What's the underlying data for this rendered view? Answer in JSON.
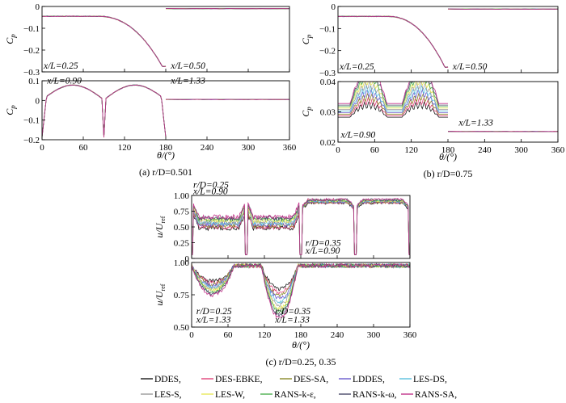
{
  "series_legend": [
    {
      "name": "DDES",
      "color": "#1a1a1a"
    },
    {
      "name": "DES-EBKE",
      "color": "#e0457a"
    },
    {
      "name": "DES-SA",
      "color": "#8a8a2a"
    },
    {
      "name": "LDDES",
      "color": "#6a5acd"
    },
    {
      "name": "LES-DS",
      "color": "#5bc0de"
    },
    {
      "name": "LES-S",
      "color": "#9a9a9a"
    },
    {
      "name": "LES-W",
      "color": "#e8e85a"
    },
    {
      "name": "RANS-k-ε",
      "color": "#4caf50"
    },
    {
      "name": "RANS-k-ω",
      "color": "#4a4a6a"
    },
    {
      "name": "RANS-SA",
      "color": "#c2338a"
    }
  ],
  "chart_data": [
    {
      "id": "a_top",
      "type": "line",
      "ylabel": "C_p",
      "ylim": [
        -0.3,
        0
      ],
      "yticks": [
        "0",
        "−0.1",
        "−0.2",
        "−0.3"
      ],
      "xlim": [
        0,
        360
      ],
      "show_xticks": false,
      "annotations": [
        {
          "text": "x/L=0.25",
          "x": 0,
          "y": -0.285
        },
        {
          "text": "x/L=0.50",
          "x": 185,
          "y": -0.285
        }
      ],
      "segments": [
        {
          "x0": 0,
          "x1": 180,
          "shape": "cp_drop"
        },
        {
          "x0": 180,
          "x1": 360,
          "shape": "flat",
          "base": -0.01
        }
      ]
    },
    {
      "id": "a_bot",
      "type": "line",
      "ylabel": "C_p",
      "ylim": [
        -0.2,
        0.1
      ],
      "yticks": [
        "0.1",
        "0",
        "−0.1",
        "−0.2"
      ],
      "xlim": [
        0,
        360
      ],
      "show_xticks": true,
      "xticks": [
        "0",
        "60",
        "120",
        "180",
        "240",
        "300",
        "360"
      ],
      "annotations": [
        {
          "text": "x/L=0.90",
          "x": 5,
          "y": 0.085
        },
        {
          "text": "x/L=1.33",
          "x": 185,
          "y": 0.085
        }
      ],
      "segments": [
        {
          "x0": 0,
          "x1": 180,
          "shape": "arches"
        },
        {
          "x0": 180,
          "x1": 360,
          "shape": "flat",
          "base": 0.005
        }
      ]
    },
    {
      "id": "b_top",
      "type": "line",
      "ylabel": "C_p",
      "ylim": [
        -0.3,
        0
      ],
      "yticks": [
        "0",
        "−0.1",
        "−0.2",
        "−0.3"
      ],
      "xlim": [
        0,
        360
      ],
      "show_xticks": false,
      "annotations": [
        {
          "text": "x/L=0.25",
          "x": 0,
          "y": -0.285
        },
        {
          "text": "x/L=0.50",
          "x": 185,
          "y": -0.285
        }
      ],
      "segments": [
        {
          "x0": 0,
          "x1": 180,
          "shape": "cp_drop"
        },
        {
          "x0": 180,
          "x1": 360,
          "shape": "flat",
          "base": -0.012
        }
      ]
    },
    {
      "id": "b_bot",
      "type": "line",
      "ylabel": "C_p",
      "ylim": [
        0.02,
        0.04
      ],
      "yticks": [
        "0.04",
        "0.03",
        "0.02"
      ],
      "xlim": [
        0,
        360
      ],
      "show_xticks": true,
      "xticks": [
        "0",
        "60",
        "120",
        "180",
        "240",
        "300",
        "360"
      ],
      "annotations": [
        {
          "text": "x/L=0.90",
          "x": 2,
          "y": 0.0215
        },
        {
          "text": "x/L=1.33",
          "x": 195,
          "y": 0.0255
        }
      ],
      "segments": [
        {
          "x0": 0,
          "x1": 180,
          "shape": "double_hump"
        },
        {
          "x0": 180,
          "x1": 360,
          "shape": "flat",
          "base": 0.0235
        }
      ]
    },
    {
      "id": "c_top",
      "type": "line",
      "ylabel": "u/U_ref",
      "ylim": [
        0,
        1
      ],
      "yticks": [
        "1.00",
        "0.75",
        "0.50",
        "0.25",
        "0"
      ],
      "xlim": [
        0,
        360
      ],
      "show_xticks": false,
      "annotations": [
        {
          "text": "r/D=0.25",
          "x": 0,
          "y": 1.12
        },
        {
          "text": "x/L=0.90",
          "x": 0,
          "y": 1.02
        },
        {
          "text": "r/D=0.35",
          "x": 185,
          "y": 0.2
        },
        {
          "text": "x/L=0.90",
          "x": 185,
          "y": 0.08
        }
      ],
      "segments": [
        {
          "x0": 0,
          "x1": 180,
          "shape": "u_hump"
        },
        {
          "x0": 180,
          "x1": 360,
          "shape": "u_high"
        }
      ]
    },
    {
      "id": "c_bot",
      "type": "line",
      "ylabel": "u/U_ref",
      "ylim": [
        0.5,
        1
      ],
      "yticks": [
        "1.00",
        "0.75",
        "0.50"
      ],
      "xlim": [
        0,
        360
      ],
      "show_xticks": true,
      "xticks": [
        "0",
        "60",
        "120",
        "180",
        "240",
        "300",
        "360"
      ],
      "annotations": [
        {
          "text": "r/D=0.25",
          "x": 5,
          "y": 0.6
        },
        {
          "text": "x/L=1.33",
          "x": 5,
          "y": 0.535
        },
        {
          "text": "r/D=0.35",
          "x": 135,
          "y": 0.6
        },
        {
          "text": "x/L=1.33",
          "x": 135,
          "y": 0.535
        }
      ],
      "segments": [
        {
          "x0": 0,
          "x1": 360,
          "shape": "u_dips"
        }
      ]
    }
  ],
  "panel_labels": {
    "a": "(a)  r/D=0.501",
    "b": "(b)  r/D=0.75",
    "c": "(c)  r/D=0.25, 0.35"
  },
  "xlabel": "θ/(°)"
}
